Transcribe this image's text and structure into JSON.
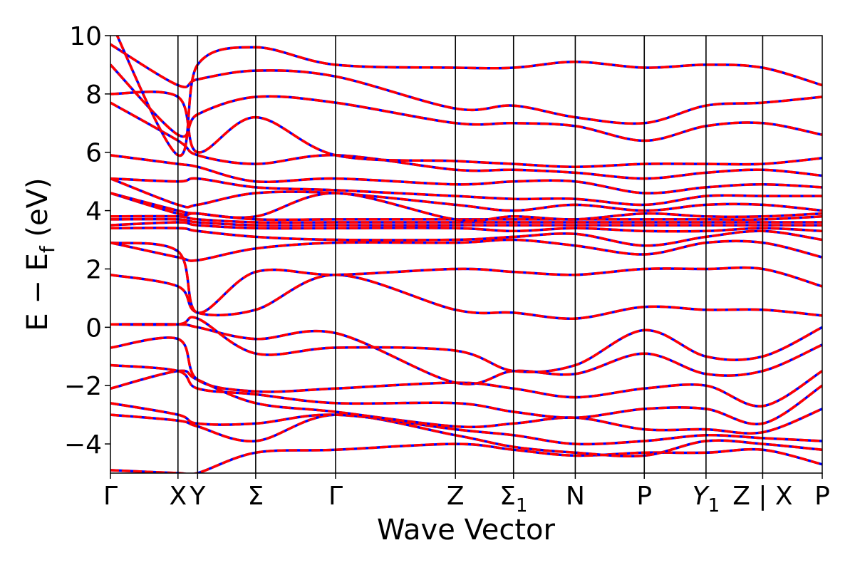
{
  "chart_data": {
    "type": "line",
    "title": "",
    "xlabel": "Wave Vector",
    "ylabel": "E − E",
    "ylabel_subscript": "f",
    "ylabel_unit": " (eV)",
    "ylim": [
      -5,
      10
    ],
    "yticks": [
      -4,
      -2,
      0,
      2,
      4,
      6,
      8,
      10
    ],
    "ytick_labels": [
      "−4",
      "−2",
      "0",
      "2",
      "4",
      "6",
      "8",
      "10"
    ],
    "xlim": [
      0,
      9.8
    ],
    "kpoints": [
      {
        "label": "Γ",
        "x": 0.0
      },
      {
        "label": "X",
        "x": 0.93
      },
      {
        "label": "Y",
        "x": 1.2
      },
      {
        "label": "Σ",
        "x": 2.0
      },
      {
        "label": "Γ",
        "x": 3.1
      },
      {
        "label": "Z",
        "x": 4.75
      },
      {
        "label": "Σ",
        "sub": "1",
        "x": 5.55
      },
      {
        "label": "N",
        "x": 6.4
      },
      {
        "label": "P",
        "x": 7.35
      },
      {
        "label": "Y",
        "sub": "1",
        "italic": true,
        "x": 8.2
      },
      {
        "label": "Z | X",
        "x": 8.98
      },
      {
        "label": "P",
        "x": 9.8
      }
    ],
    "vlines": [
      0.93,
      1.2,
      2.0,
      3.1,
      4.75,
      5.55,
      6.4,
      7.35,
      8.2,
      8.98
    ],
    "series": [
      {
        "color": "#0000ff",
        "style": "solid"
      },
      {
        "color": "#ff0000",
        "style": "dashed"
      }
    ],
    "bands": [
      [
        -4.9,
        -5.0,
        -5.0,
        -4.3,
        -4.2,
        -4.0,
        -4.2,
        -4.4,
        -4.3,
        -4.3,
        -4.2,
        -4.7,
        -5.0
      ],
      [
        -3.0,
        -3.2,
        -3.4,
        -3.9,
        -3.0,
        -3.7,
        -4.1,
        -4.3,
        -4.4,
        -3.9,
        -4.0,
        -4.2,
        -4.5
      ],
      [
        -2.6,
        -3.0,
        -3.3,
        -3.3,
        -3.0,
        -3.5,
        -3.7,
        -4.0,
        -3.9,
        -3.7,
        -3.8,
        -3.9,
        -3.9
      ],
      [
        -2.1,
        -1.5,
        -1.8,
        -2.6,
        -2.9,
        -3.4,
        -3.3,
        -3.1,
        -3.5,
        -3.5,
        -3.6,
        -2.8,
        -2.7
      ],
      [
        -1.3,
        -1.5,
        -2.1,
        -2.3,
        -2.6,
        -2.6,
        -2.9,
        -3.1,
        -2.8,
        -2.8,
        -3.3,
        -2.0,
        -2.1
      ],
      [
        -0.7,
        -0.4,
        -1.8,
        -2.2,
        -2.1,
        -1.9,
        -2.1,
        -2.4,
        -2.1,
        -2.0,
        -2.7,
        -1.5,
        -1.9
      ],
      [
        0.1,
        0.1,
        0.0,
        -0.4,
        -0.2,
        -1.9,
        -1.5,
        -1.6,
        -0.9,
        -1.6,
        -1.5,
        -0.6,
        -0.5
      ],
      [
        0.1,
        0.1,
        0.3,
        -0.9,
        -0.7,
        -0.8,
        -1.5,
        -1.3,
        -0.1,
        -1.0,
        -1.0,
        0.0,
        0.1
      ],
      [
        1.8,
        1.4,
        0.5,
        0.6,
        1.8,
        0.6,
        0.5,
        0.3,
        0.7,
        0.6,
        0.6,
        0.4,
        0.6
      ],
      [
        2.9,
        2.6,
        0.5,
        1.9,
        1.8,
        2.0,
        1.9,
        1.8,
        2.0,
        2.0,
        2.0,
        1.4,
        1.5
      ],
      [
        2.9,
        2.4,
        2.3,
        2.7,
        2.9,
        2.9,
        3.0,
        2.8,
        2.5,
        2.9,
        2.9,
        2.4,
        2.3
      ],
      [
        3.4,
        3.4,
        3.3,
        3.1,
        3.0,
        3.0,
        3.1,
        3.2,
        2.8,
        3.1,
        3.3,
        3.0,
        3.0
      ],
      [
        3.5,
        3.6,
        3.5,
        3.4,
        3.4,
        3.4,
        3.3,
        3.4,
        3.3,
        3.3,
        3.4,
        3.3,
        3.3
      ],
      [
        3.7,
        3.7,
        3.6,
        3.5,
        3.5,
        3.5,
        3.5,
        3.5,
        3.5,
        3.5,
        3.5,
        3.5,
        3.5
      ],
      [
        3.8,
        3.8,
        3.7,
        3.6,
        3.6,
        3.6,
        3.6,
        3.6,
        3.6,
        3.6,
        3.6,
        3.6,
        3.6
      ],
      [
        4.6,
        3.9,
        3.9,
        3.7,
        3.7,
        3.7,
        3.7,
        3.7,
        3.7,
        3.7,
        3.7,
        3.8,
        3.7
      ],
      [
        4.6,
        4.0,
        3.9,
        3.8,
        4.6,
        3.7,
        3.8,
        3.7,
        3.9,
        3.8,
        3.8,
        3.9,
        3.9
      ],
      [
        5.1,
        4.2,
        4.2,
        4.6,
        4.6,
        4.2,
        4.0,
        4.2,
        4.0,
        4.2,
        4.2,
        4.0,
        4.0
      ],
      [
        5.1,
        5.0,
        5.1,
        4.8,
        4.7,
        4.5,
        4.4,
        4.4,
        4.2,
        4.5,
        4.5,
        4.5,
        4.6
      ],
      [
        5.9,
        5.6,
        5.5,
        5.0,
        5.1,
        4.9,
        5.0,
        5.0,
        4.6,
        4.8,
        4.9,
        4.8,
        5.0
      ],
      [
        7.7,
        6.4,
        5.9,
        5.6,
        5.9,
        5.4,
        5.4,
        5.3,
        5.1,
        5.3,
        5.4,
        5.2,
        5.6
      ],
      [
        8.0,
        7.9,
        6.0,
        7.2,
        5.9,
        5.7,
        5.6,
        5.5,
        5.6,
        5.6,
        5.6,
        5.8,
        6.3
      ],
      [
        9.0,
        6.6,
        7.3,
        7.9,
        7.7,
        7.0,
        7.0,
        6.9,
        6.4,
        6.9,
        7.0,
        6.6,
        7.9
      ],
      [
        9.7,
        8.3,
        8.5,
        8.8,
        8.6,
        7.5,
        7.6,
        7.2,
        7.0,
        7.6,
        7.7,
        7.9,
        8.9
      ],
      [
        10.5,
        5.9,
        9.0,
        9.6,
        9.0,
        8.9,
        8.9,
        9.1,
        8.9,
        9.0,
        8.9,
        8.3,
        9.8
      ]
    ]
  }
}
